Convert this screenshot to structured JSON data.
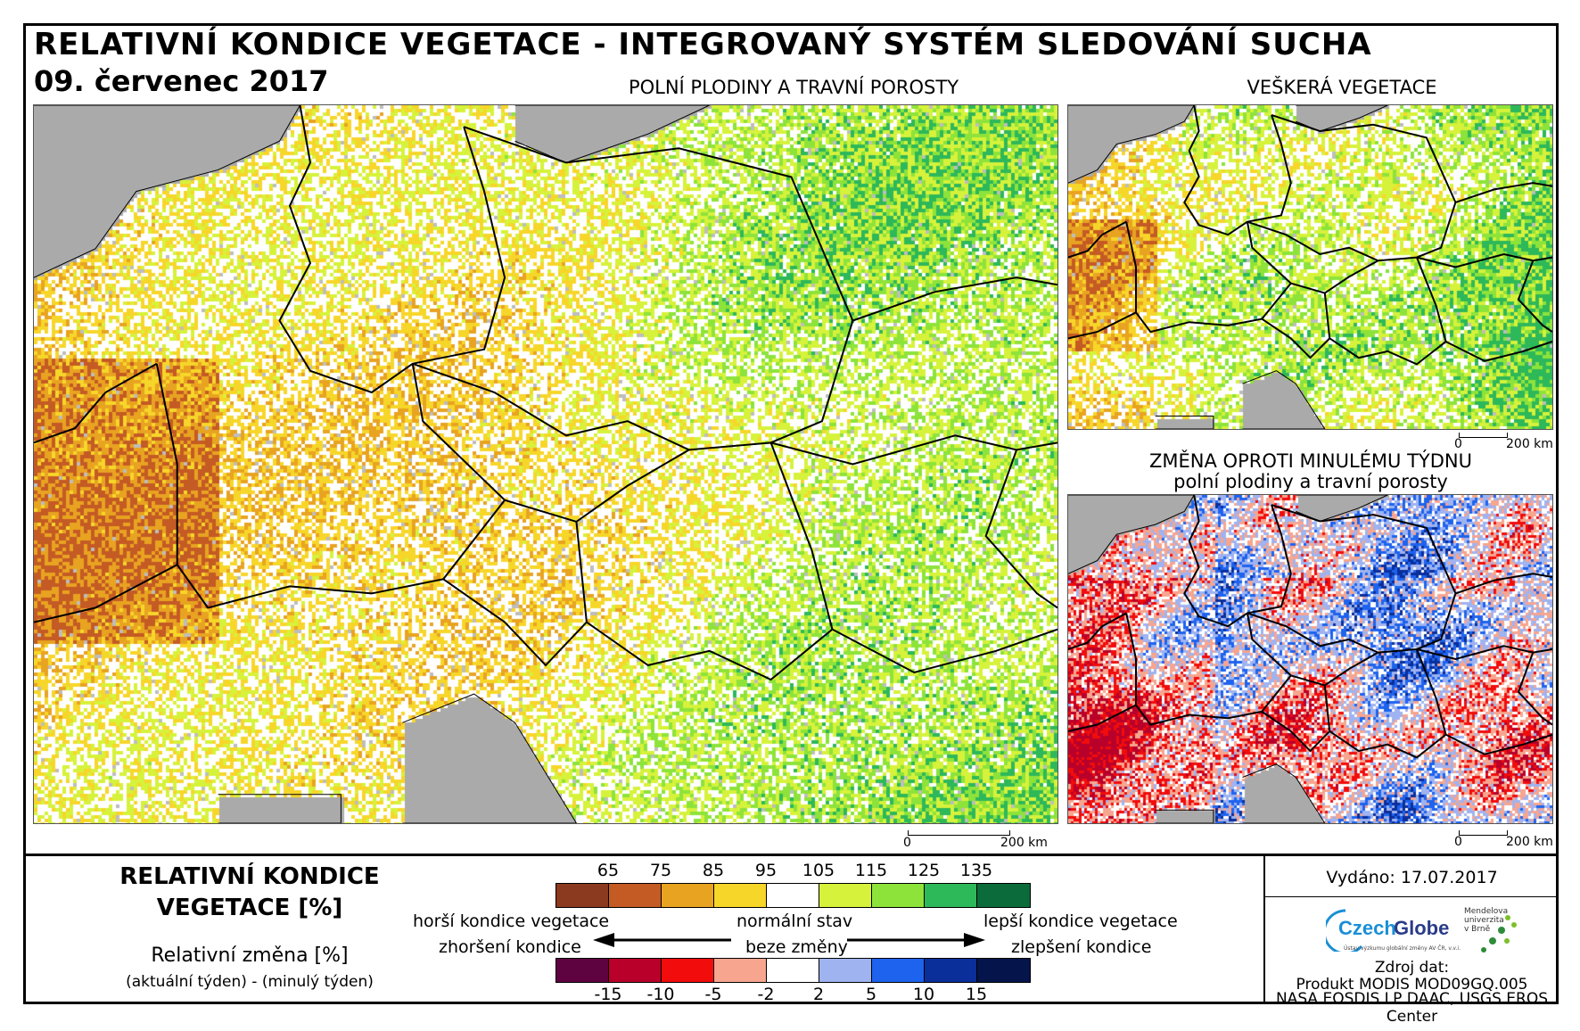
{
  "header": {
    "title": "RELATIVNÍ KONDICE VEGETACE - INTEGROVANÝ SYSTÉM SLEDOVÁNÍ SUCHA",
    "date": "09. červenec 2017"
  },
  "panels": {
    "main": {
      "title": "POLNÍ PLODINY A TRAVNÍ POROSTY",
      "scale_start": "0",
      "scale_end": "200 km"
    },
    "all_vegetation": {
      "title": "VEŠKERÁ VEGETACE",
      "scale_start": "0",
      "scale_end": "200 km"
    },
    "weekly_change": {
      "title_line1": "ZMĚNA OPROTI MINULÉMU TÝDNU",
      "title_line2": "polní plodiny a travní porosty",
      "scale_start": "0",
      "scale_end": "200 km"
    }
  },
  "legend": {
    "title_line1": "RELATIVNÍ KONDICE",
    "title_line2": "VEGETACE [%]",
    "sub_title": "Relativní změna [%]",
    "sub_note": "(aktuální týden) - (minulý týden)",
    "condition_ticks": [
      "65",
      "75",
      "85",
      "95",
      "105",
      "115",
      "125",
      "135"
    ],
    "condition_colors": [
      "#8b3a1f",
      "#c45a24",
      "#e8a321",
      "#f7d62a",
      "#ffffff",
      "#d6f23a",
      "#8de33a",
      "#2db85a",
      "#0b6b3a"
    ],
    "change_ticks": [
      "-15",
      "-10",
      "-5",
      "-2",
      "2",
      "5",
      "10",
      "15"
    ],
    "change_colors": [
      "#5e0240",
      "#b8002a",
      "#f20c0c",
      "#f7a58f",
      "#ffffff",
      "#9fb3f0",
      "#1e63ee",
      "#0a2e9a",
      "#05144a"
    ],
    "worse_condition": "horší kondice vegetace",
    "normal_state": "normální stav",
    "better_condition": "lepší kondice vegetace",
    "worsening": "zhoršení kondice",
    "no_change": "beze změny",
    "improvement": "zlepšení kondice"
  },
  "info": {
    "issued": "Vydáno: 17.07.2017",
    "logo_name": "CzechGlobe",
    "logo_sub": "Ústav výzkumu globální změny AV ČR, v.v.i.",
    "mendel": "Mendelova univerzita v Brně",
    "source_label": "Zdroj dat:",
    "source_line1": "Produkt MODIS MOD09GQ.005",
    "source_line2": "NASA EOSDIS LP DAAC, USGS EROS Center"
  }
}
